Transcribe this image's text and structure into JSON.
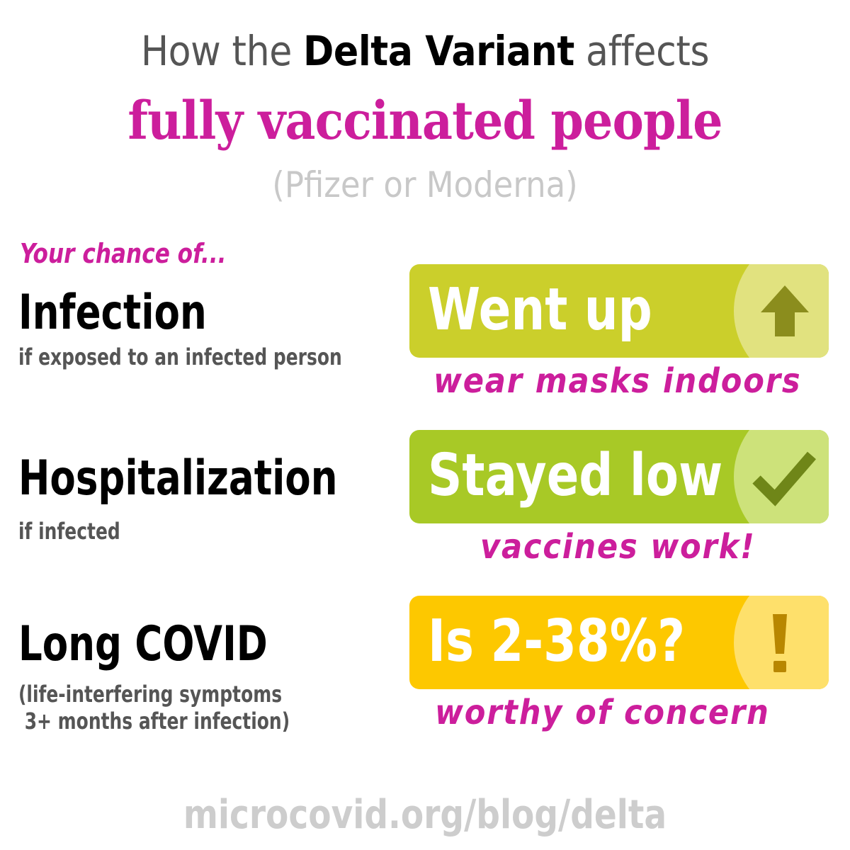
{
  "header": {
    "line1_prefix": "How the",
    "line1_bold": "Delta Variant",
    "line1_suffix": "affects",
    "line2": "fully vaccinated people",
    "line3": "(Pfizer or Moderna)"
  },
  "intro": "Your chance of...",
  "rows": [
    {
      "title": "Infection",
      "subtitle": "if exposed to an infected person",
      "status": "Went up",
      "note": "wear masks indoors",
      "icon": "up-arrow-icon",
      "colors": {
        "pill": "#cbcf2b",
        "circle": "#e1e27f",
        "icon": "#8b8d1d"
      }
    },
    {
      "title": "Hospitalization",
      "subtitle": "if infected",
      "status": "Stayed low",
      "note": "vaccines work!",
      "icon": "checkmark-icon",
      "colors": {
        "pill": "#a8c926",
        "circle": "#cde27a",
        "icon": "#6f8618"
      }
    },
    {
      "title": "Long COVID",
      "subtitle": "(life-interfering symptoms\n 3+ months after infection)",
      "status": "Is 2-38%?",
      "note": "worthy of concern",
      "icon": "exclamation-icon",
      "colors": {
        "pill": "#fdc800",
        "circle": "#fee06b",
        "icon": "#b88700"
      }
    }
  ],
  "footer": "microcovid.org/blog/delta",
  "colors": {
    "accent": "#cc1e9c",
    "subtitle_gray": "#555555",
    "light_gray": "#c8c8c8"
  }
}
